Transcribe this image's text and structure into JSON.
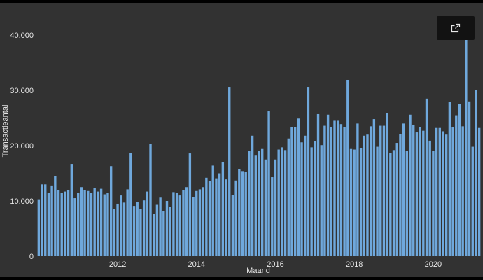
{
  "export_button": {
    "icon": "external-link-icon"
  },
  "chart_data": {
    "type": "bar",
    "title": "",
    "xlabel": "Maand",
    "ylabel": "Transactieantal",
    "ylim": [
      0,
      40000
    ],
    "yticks": [
      0,
      10000,
      20000,
      30000,
      40000
    ],
    "ytick_labels": [
      "0",
      "10.000",
      "20.000",
      "30.000",
      "40.000"
    ],
    "xticks": [
      "2012",
      "2014",
      "2016",
      "2018",
      "2020"
    ],
    "grid": false,
    "bar_color": "#6fa8dc",
    "background": "#323232",
    "series": [
      {
        "start": "2010-01",
        "values": [
          10300,
          13000,
          13000,
          11500,
          12800,
          14500,
          12000,
          11500,
          11700,
          12000,
          16700,
          10500,
          11400,
          12500,
          12000,
          11800,
          11500,
          12400,
          11700,
          12200,
          11200,
          11500,
          16300,
          8500,
          9500,
          11000,
          9700,
          12100,
          18700,
          9100,
          9800,
          8600,
          10100,
          11700,
          20300,
          7600,
          9300,
          10600,
          8100,
          10000,
          8900,
          11600,
          11500,
          11000,
          12000,
          12500,
          18600,
          10700,
          11800,
          12100,
          12500,
          14200,
          13600,
          16400,
          14100,
          15000,
          17000,
          13900,
          30500,
          11100,
          13700,
          15800,
          15400,
          15300,
          19100,
          21800,
          18200,
          19000,
          19400,
          17500,
          26200,
          14300,
          17500,
          19300,
          19700,
          19200,
          21300,
          23300,
          23300,
          24900,
          20600,
          21800,
          30500,
          19700,
          20800,
          25700,
          20100,
          23600,
          25600,
          23300,
          24500,
          24500,
          23900,
          23300,
          31900,
          19400,
          19300,
          24000,
          19500,
          21800,
          22000,
          23500,
          24800,
          19800,
          23600,
          23600,
          25900,
          18700,
          19200,
          20500,
          22100,
          24000,
          19000,
          25600,
          23800,
          22400,
          23300,
          22700,
          28500,
          20900,
          19000,
          23200,
          23200,
          22600,
          22000,
          27900,
          23300,
          25500,
          27500,
          23500,
          39900,
          28000,
          19800,
          30100,
          23200
        ]
      }
    ]
  }
}
